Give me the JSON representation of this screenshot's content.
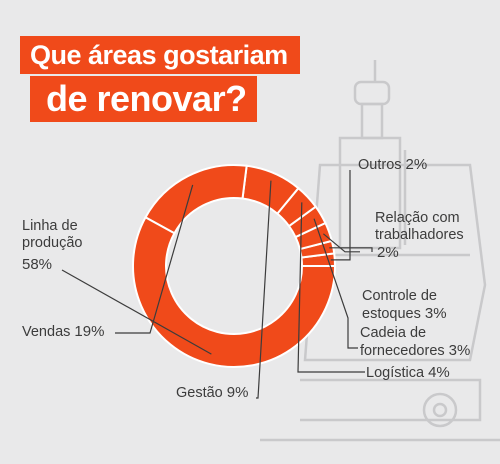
{
  "title": {
    "line1": "Que áreas gostariam",
    "line2": "de renovar?"
  },
  "colors": {
    "accent": "#f04a1a",
    "slice_stroke": "#ffffff",
    "leader_line": "#3c3c3c",
    "background": "#e9e9ea"
  },
  "chart_data": {
    "type": "pie",
    "donut": true,
    "title": "Que áreas gostariam de renovar?",
    "series": [
      {
        "values": [
          58,
          19,
          9,
          4,
          3,
          3,
          2,
          2
        ],
        "labels": [
          "Linha de produção",
          "Vendas",
          "Gestão",
          "Logística",
          "Cadeia de fornecedores",
          "Controle de estoques",
          "Relação com trabalhadores",
          "Outros"
        ],
        "display_values": [
          "58%",
          "19%",
          "9%",
          "4%",
          "3%",
          "3%",
          "2%",
          "2%"
        ]
      }
    ],
    "start": "3 o'clock, clockwise order follows the slices listed in reverse"
  },
  "labels": {
    "linha": {
      "name_line1": "Linha de",
      "name_line2": "produção",
      "value": "58%"
    },
    "vendas": {
      "name": "Vendas",
      "value": "19%"
    },
    "gestao": {
      "name": "Gestão",
      "value": "9%"
    },
    "logistica": {
      "name": "Logística",
      "value": "4%"
    },
    "cadeia": {
      "name_line1": "Cadeia de",
      "name_line2": "fornecedores",
      "value": "3%"
    },
    "controle": {
      "name_line1": "Controle de",
      "name_line2": "estoques",
      "value": "3%"
    },
    "relacao": {
      "name_line1": "Relação com",
      "name_line2": "trabalhadores",
      "value": "2%"
    },
    "outros": {
      "name": "Outros",
      "value": "2%"
    }
  }
}
